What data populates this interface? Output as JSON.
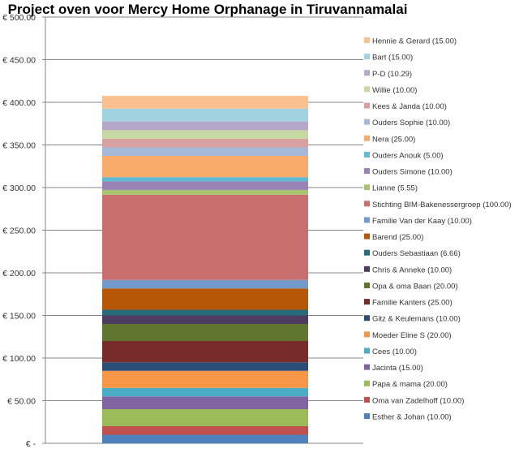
{
  "chart_data": {
    "type": "bar",
    "stacked": true,
    "title": "Project oven voor Mercy Home Orphanage in Tiruvannamalai",
    "xlabel": "",
    "ylabel": "",
    "categories": [
      ""
    ],
    "ylim": [
      0,
      500
    ],
    "yticks": [
      0,
      50,
      100,
      150,
      200,
      250,
      300,
      350,
      400,
      450,
      500
    ],
    "ytick_labels": [
      "€ -",
      "€ 50.00",
      "€ 100.00",
      "€ 150.00",
      "€ 200.00",
      "€ 250.00",
      "€ 300.00",
      "€ 350.00",
      "€ 400.00",
      "€ 450.00",
      "€ 500.00"
    ],
    "grid": true,
    "legend_position": "right",
    "series": [
      {
        "name": "Esther & Johan (10.00)",
        "value": 10.0,
        "color": "#4f81bd"
      },
      {
        "name": "Oma van Zadelhoff (10.00)",
        "value": 10.0,
        "color": "#c0504d"
      },
      {
        "name": "Papa & mama (20.00)",
        "value": 20.0,
        "color": "#9bbb59"
      },
      {
        "name": "Jacinta (15.00)",
        "value": 15.0,
        "color": "#8064a2"
      },
      {
        "name": "Cees (10.00)",
        "value": 10.0,
        "color": "#4bacc6"
      },
      {
        "name": "Moeder Eline S (20.00)",
        "value": 20.0,
        "color": "#f79646"
      },
      {
        "name": "Gitz & Keulemans (10.00)",
        "value": 10.0,
        "color": "#2c4d75"
      },
      {
        "name": "Familie Kanters (25.00)",
        "value": 25.0,
        "color": "#772c2a"
      },
      {
        "name": "Opa & oma Baan (20.00)",
        "value": 20.0,
        "color": "#5f7530"
      },
      {
        "name": "Chris & Anneke (10.00)",
        "value": 10.0,
        "color": "#4d3b62"
      },
      {
        "name": "Ouders Sebastiaan (6.66)",
        "value": 6.66,
        "color": "#276a7c"
      },
      {
        "name": "Barend (25.00)",
        "value": 25.0,
        "color": "#b65708"
      },
      {
        "name": "Familie Van der Kaay (10.00)",
        "value": 10.0,
        "color": "#729aca"
      },
      {
        "name": "Stichting BIM-Bakenessergroep (100.00)",
        "value": 100.0,
        "color": "#c9706e"
      },
      {
        "name": "Lianne (5.55)",
        "value": 5.55,
        "color": "#a9c46f"
      },
      {
        "name": "Ouders Simone (10.00)",
        "value": 10.0,
        "color": "#9983b5"
      },
      {
        "name": "Ouders Anouk (5.00)",
        "value": 5.0,
        "color": "#5fbcd3"
      },
      {
        "name": "Nera (25.00)",
        "value": 25.0,
        "color": "#f9ab6b"
      },
      {
        "name": "Ouders Sophie (10.00)",
        "value": 10.0,
        "color": "#a5b8d8"
      },
      {
        "name": "Kees & Janda (10.00)",
        "value": 10.0,
        "color": "#d9a0a0"
      },
      {
        "name": "Willie (10.00)",
        "value": 10.0,
        "color": "#c6d9a0"
      },
      {
        "name": "P-D (10.29)",
        "value": 10.29,
        "color": "#b4a7c8"
      },
      {
        "name": "Bart (15.00)",
        "value": 15.0,
        "color": "#a0d2e0"
      },
      {
        "name": "Hennie & Gerard (15.00)",
        "value": 15.0,
        "color": "#fac08f"
      }
    ]
  }
}
